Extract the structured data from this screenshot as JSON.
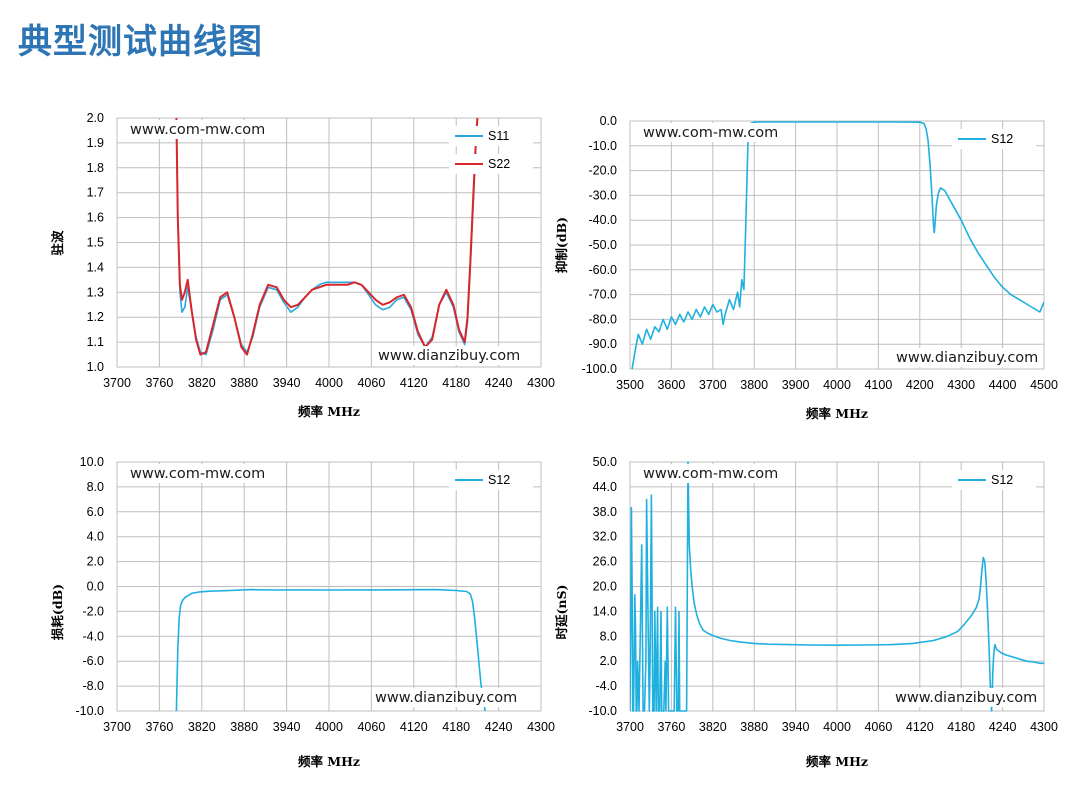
{
  "page": {
    "title": "典型测试曲线图"
  },
  "colors": {
    "title": "#2e75b6",
    "s11": "#29a8e0",
    "s22": "#d9262b",
    "s12": "#1fb0e0",
    "grid": "#bfbfbf"
  },
  "chart_data": [
    {
      "id": "vswr",
      "type": "line",
      "title": "",
      "xlabel": "频率 MHz",
      "ylabel": "驻波",
      "xlim": [
        3700,
        4300
      ],
      "ylim": [
        1.0,
        2.0
      ],
      "xticks": [
        3700,
        3760,
        3820,
        3880,
        3940,
        4000,
        4060,
        4120,
        4180,
        4240,
        4300
      ],
      "yticks": [
        "1.0",
        "1.1",
        "1.2",
        "1.3",
        "1.4",
        "1.5",
        "1.6",
        "1.7",
        "1.8",
        "1.9",
        "2.0"
      ],
      "watermarks": [
        "www.com-mw.com",
        "www.dianzibuy.com"
      ],
      "legend": "top-right",
      "series": [
        {
          "name": "S11",
          "color": "#29a8e0",
          "x": [
            3784,
            3786,
            3789,
            3792,
            3796,
            3800,
            3806,
            3812,
            3818,
            3826,
            3836,
            3846,
            3856,
            3866,
            3876,
            3884,
            3892,
            3902,
            3914,
            3926,
            3936,
            3946,
            3956,
            3966,
            3976,
            3986,
            3996,
            4006,
            4016,
            4026,
            4036,
            4046,
            4056,
            4066,
            4076,
            4086,
            4096,
            4106,
            4116,
            4126,
            4136,
            4146,
            4156,
            4166,
            4176,
            4184,
            4192,
            4196,
            4200,
            4204,
            4208,
            4210
          ],
          "y": [
            2.0,
            1.6,
            1.3,
            1.22,
            1.24,
            1.32,
            1.22,
            1.12,
            1.06,
            1.05,
            1.15,
            1.27,
            1.29,
            1.2,
            1.09,
            1.06,
            1.12,
            1.24,
            1.32,
            1.31,
            1.26,
            1.22,
            1.24,
            1.28,
            1.31,
            1.33,
            1.34,
            1.34,
            1.34,
            1.34,
            1.34,
            1.33,
            1.29,
            1.25,
            1.23,
            1.24,
            1.27,
            1.28,
            1.23,
            1.13,
            1.08,
            1.12,
            1.25,
            1.3,
            1.24,
            1.14,
            1.09,
            1.18,
            1.4,
            1.65,
            1.9,
            2.0
          ]
        },
        {
          "name": "S22",
          "color": "#d9262b",
          "x": [
            3784,
            3786,
            3789,
            3792,
            3796,
            3800,
            3806,
            3812,
            3818,
            3826,
            3836,
            3846,
            3856,
            3866,
            3876,
            3884,
            3892,
            3902,
            3914,
            3926,
            3936,
            3946,
            3956,
            3966,
            3976,
            3986,
            3996,
            4006,
            4016,
            4026,
            4036,
            4046,
            4056,
            4066,
            4076,
            4086,
            4096,
            4106,
            4116,
            4126,
            4136,
            4146,
            4156,
            4166,
            4176,
            4184,
            4192,
            4196,
            4200,
            4204,
            4208,
            4210
          ],
          "y": [
            2.0,
            1.6,
            1.33,
            1.27,
            1.3,
            1.35,
            1.22,
            1.11,
            1.05,
            1.06,
            1.17,
            1.28,
            1.3,
            1.2,
            1.08,
            1.05,
            1.13,
            1.25,
            1.33,
            1.32,
            1.27,
            1.24,
            1.25,
            1.28,
            1.31,
            1.32,
            1.33,
            1.33,
            1.33,
            1.33,
            1.34,
            1.33,
            1.3,
            1.27,
            1.25,
            1.26,
            1.28,
            1.29,
            1.24,
            1.14,
            1.08,
            1.11,
            1.25,
            1.31,
            1.25,
            1.15,
            1.1,
            1.2,
            1.42,
            1.68,
            1.92,
            2.0
          ]
        }
      ]
    },
    {
      "id": "rejection",
      "type": "line",
      "title": "",
      "xlabel": "频率 MHz",
      "ylabel": "抑制(dB)",
      "xlim": [
        3500,
        4500
      ],
      "ylim": [
        -100,
        0
      ],
      "xticks": [
        3500,
        3600,
        3700,
        3800,
        3900,
        4000,
        4100,
        4200,
        4300,
        4400,
        4500
      ],
      "yticks": [
        "-100.0",
        "-90.0",
        "-80.0",
        "-70.0",
        "-60.0",
        "-50.0",
        "-40.0",
        "-30.0",
        "-20.0",
        "-10.0",
        "0.0"
      ],
      "watermarks": [
        "www.com-mw.com",
        "www.dianzibuy.com"
      ],
      "legend": "top-right",
      "series": [
        {
          "name": "S12",
          "color": "#1fb0e0",
          "x": [
            3505,
            3512,
            3520,
            3530,
            3540,
            3550,
            3560,
            3570,
            3580,
            3590,
            3600,
            3610,
            3620,
            3630,
            3640,
            3650,
            3660,
            3670,
            3680,
            3690,
            3700,
            3710,
            3720,
            3725,
            3730,
            3740,
            3750,
            3760,
            3765,
            3770,
            3775,
            3780,
            3785,
            3790,
            3800,
            3810,
            3850,
            3900,
            4000,
            4100,
            4150,
            4200,
            4210,
            4215,
            4220,
            4225,
            4230,
            4233,
            4235,
            4240,
            4245,
            4250,
            4260,
            4270,
            4280,
            4300,
            4320,
            4340,
            4360,
            4380,
            4400,
            4420,
            4440,
            4460,
            4480,
            4490,
            4495,
            4500
          ],
          "y": [
            -100,
            -93,
            -86,
            -90,
            -84,
            -88,
            -83,
            -85,
            -80,
            -84,
            -79,
            -82,
            -78,
            -81,
            -77,
            -80,
            -76,
            -79,
            -75,
            -78,
            -74,
            -77,
            -76,
            -82,
            -78,
            -72,
            -76,
            -69,
            -75,
            -64,
            -68,
            -40,
            -8,
            -1,
            -0.5,
            -0.4,
            -0.4,
            -0.4,
            -0.4,
            -0.4,
            -0.4,
            -0.5,
            -1,
            -3,
            -8,
            -18,
            -32,
            -42,
            -45,
            -34,
            -29,
            -27,
            -28,
            -31,
            -34,
            -40,
            -47,
            -53,
            -58,
            -63,
            -67,
            -70,
            -72,
            -74,
            -76,
            -77,
            -75,
            -73
          ]
        }
      ]
    },
    {
      "id": "insertion-loss",
      "type": "line",
      "title": "",
      "xlabel": "频率 MHz",
      "ylabel": "损耗(dB)",
      "xlim": [
        3700,
        4300
      ],
      "ylim": [
        -10,
        10
      ],
      "xticks": [
        3700,
        3760,
        3820,
        3880,
        3940,
        4000,
        4060,
        4120,
        4180,
        4240,
        4300
      ],
      "yticks": [
        "-10.0",
        "-8.0",
        "-6.0",
        "-4.0",
        "-2.0",
        "0.0",
        "2.0",
        "4.0",
        "6.0",
        "8.0",
        "10.0"
      ],
      "watermarks": [
        "www.com-mw.com",
        "www.dianzibuy.com"
      ],
      "legend": "top-right",
      "series": [
        {
          "name": "S12",
          "color": "#1fb0e0",
          "x": [
            3784,
            3786,
            3788,
            3790,
            3793,
            3796,
            3800,
            3806,
            3815,
            3830,
            3860,
            3890,
            3920,
            3960,
            4000,
            4040,
            4080,
            4120,
            4150,
            4180,
            4195,
            4200,
            4203,
            4206,
            4209,
            4212,
            4215,
            4218,
            4221
          ],
          "y": [
            -10,
            -5,
            -2.5,
            -1.5,
            -1.1,
            -0.9,
            -0.75,
            -0.55,
            -0.45,
            -0.38,
            -0.32,
            -0.25,
            -0.28,
            -0.27,
            -0.28,
            -0.27,
            -0.27,
            -0.26,
            -0.25,
            -0.32,
            -0.4,
            -0.6,
            -1.2,
            -2.5,
            -4.2,
            -6,
            -7.8,
            -9,
            -10
          ]
        }
      ]
    },
    {
      "id": "group-delay",
      "type": "line",
      "title": "",
      "xlabel": "频率 MHz",
      "ylabel": "时延(nS)",
      "xlim": [
        3700,
        4300
      ],
      "ylim": [
        -10,
        50
      ],
      "xticks": [
        3700,
        3760,
        3820,
        3880,
        3940,
        4000,
        4060,
        4120,
        4180,
        4240,
        4300
      ],
      "yticks": [
        "-10.0",
        "-4.0",
        "2.0",
        "8.0",
        "14.0",
        "20.0",
        "26.0",
        "32.0",
        "38.0",
        "44.0",
        "50.0"
      ],
      "watermarks": [
        "www.com-mw.com",
        "www.dianzibuy.com"
      ],
      "legend": "top-right",
      "series": [
        {
          "name": "S12",
          "color": "#1fb0e0",
          "x": [
            3700,
            3701,
            3702,
            3703,
            3704,
            3705,
            3706,
            3707,
            3708,
            3709,
            3710,
            3711,
            3713,
            3715,
            3717,
            3719,
            3721,
            3723,
            3724,
            3726,
            3728,
            3729,
            3731,
            3733,
            3735,
            3736,
            3738,
            3740,
            3741,
            3743,
            3745,
            3746,
            3747,
            3749,
            3751,
            3752,
            3754,
            3756,
            3758,
            3760,
            3762,
            3764,
            3766,
            3768,
            3770,
            3771,
            3772,
            3774,
            3776,
            3778,
            3780,
            3782,
            3784,
            3785,
            3786,
            3788,
            3790,
            3793,
            3797,
            3801,
            3806,
            3812,
            3820,
            3830,
            3845,
            3860,
            3880,
            3900,
            3930,
            3960,
            4000,
            4040,
            4080,
            4110,
            4140,
            4160,
            4175,
            4185,
            4195,
            4202,
            4206,
            4208,
            4210,
            4212,
            4214,
            4216,
            4218,
            4220,
            4222,
            4224,
            4225,
            4226,
            4227,
            4228,
            4229,
            4230,
            4231,
            4232,
            4234,
            4238,
            4245,
            4255,
            4265,
            4275,
            4285,
            4295,
            4300
          ],
          "y": [
            -10,
            10,
            39,
            20,
            -10,
            -10,
            2,
            18,
            10,
            -10,
            -10,
            2,
            -10,
            10,
            30,
            -10,
            -10,
            2,
            41,
            15,
            -10,
            0,
            42,
            -10,
            -10,
            14,
            -10,
            15,
            -10,
            -10,
            14,
            -10,
            -10,
            -10,
            2,
            -10,
            15,
            -10,
            -10,
            -10,
            -10,
            -10,
            15,
            -10,
            -10,
            14,
            -10,
            -10,
            -10,
            -10,
            -10,
            -10,
            50,
            40,
            30,
            24,
            20,
            16,
            13,
            11,
            9.5,
            8.8,
            8.2,
            7.6,
            7,
            6.6,
            6.3,
            6.1,
            6,
            5.9,
            5.85,
            5.9,
            6,
            6.3,
            7,
            8,
            9.2,
            11,
            13,
            15,
            17,
            20,
            24,
            27,
            26,
            22,
            15,
            7,
            -3,
            -10,
            -5,
            0,
            3,
            5,
            6,
            5.5,
            5,
            4.8,
            4.5,
            4,
            3.5,
            3,
            2.5,
            2,
            1.8,
            1.5,
            1.5
          ]
        }
      ]
    }
  ]
}
